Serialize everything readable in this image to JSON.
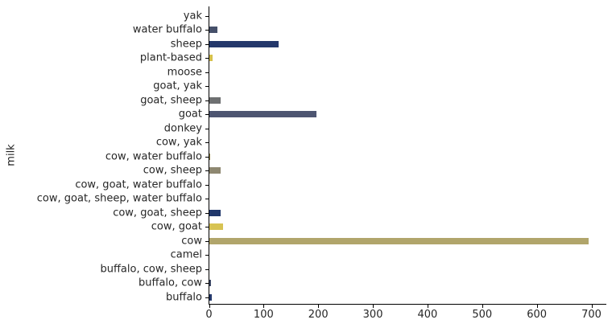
{
  "chart_data": {
    "type": "bar",
    "orientation": "horizontal",
    "title": "",
    "xlabel": "",
    "ylabel": "milk",
    "xlim": [
      0,
      700
    ],
    "x_ticks": [
      0,
      100,
      200,
      300,
      400,
      500,
      600,
      700
    ],
    "grid": false,
    "legend": false,
    "categories": [
      "yak",
      "water buffalo",
      "sheep",
      "plant-based",
      "moose",
      "goat, yak",
      "goat, sheep",
      "goat",
      "donkey",
      "cow, yak",
      "cow, water buffalo",
      "cow, sheep",
      "cow, goat, water buffalo",
      "cow, goat, sheep, water buffalo",
      "cow, goat, sheep",
      "cow, goat",
      "cow",
      "camel",
      "buffalo, cow, sheep",
      "buffalo, cow",
      "buffalo"
    ],
    "values": [
      0,
      15,
      127,
      6,
      0,
      0,
      21,
      196,
      0,
      0,
      2,
      20,
      0,
      0,
      20,
      25,
      694,
      0,
      0,
      3,
      4
    ],
    "bar_colors": [
      "#24386b",
      "#46506a",
      "#24386b",
      "#d5c04b",
      "#24386b",
      "#24386b",
      "#6e7071",
      "#4d5571",
      "#24386b",
      "#24386b",
      "#8a7d42",
      "#8e8871",
      "#24386b",
      "#24386b",
      "#21386b",
      "#d7c353",
      "#b1a56b",
      "#24386b",
      "#24386b",
      "#3e4965",
      "#24386b"
    ],
    "axis_color": "#000000",
    "text_color": "#262626",
    "background_color": "#ffffff"
  }
}
